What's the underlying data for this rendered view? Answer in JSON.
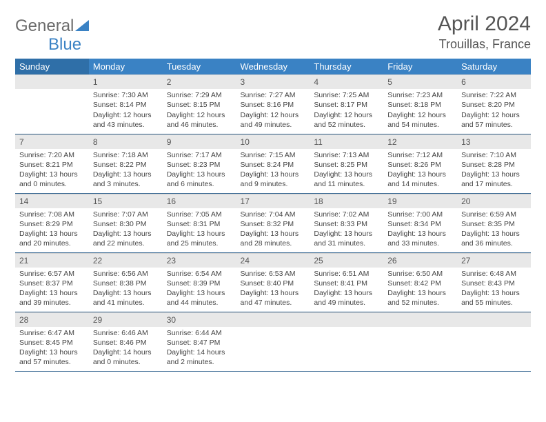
{
  "logo": {
    "part1": "General",
    "part2": "Blue"
  },
  "title": "April 2024",
  "location": "Trouillas, France",
  "header_bg": "#3a82c4",
  "header_bg_first": "#2f6fa8",
  "daynum_bg": "#e8e8e8",
  "border_color": "#3a6a94",
  "weekdays": [
    "Sunday",
    "Monday",
    "Tuesday",
    "Wednesday",
    "Thursday",
    "Friday",
    "Saturday"
  ],
  "lead_blanks": 1,
  "days": [
    {
      "n": 1,
      "sunrise": "7:30 AM",
      "sunset": "8:14 PM",
      "dl": "12 hours and 43 minutes"
    },
    {
      "n": 2,
      "sunrise": "7:29 AM",
      "sunset": "8:15 PM",
      "dl": "12 hours and 46 minutes"
    },
    {
      "n": 3,
      "sunrise": "7:27 AM",
      "sunset": "8:16 PM",
      "dl": "12 hours and 49 minutes"
    },
    {
      "n": 4,
      "sunrise": "7:25 AM",
      "sunset": "8:17 PM",
      "dl": "12 hours and 52 minutes"
    },
    {
      "n": 5,
      "sunrise": "7:23 AM",
      "sunset": "8:18 PM",
      "dl": "12 hours and 54 minutes"
    },
    {
      "n": 6,
      "sunrise": "7:22 AM",
      "sunset": "8:20 PM",
      "dl": "12 hours and 57 minutes"
    },
    {
      "n": 7,
      "sunrise": "7:20 AM",
      "sunset": "8:21 PM",
      "dl": "13 hours and 0 minutes"
    },
    {
      "n": 8,
      "sunrise": "7:18 AM",
      "sunset": "8:22 PM",
      "dl": "13 hours and 3 minutes"
    },
    {
      "n": 9,
      "sunrise": "7:17 AM",
      "sunset": "8:23 PM",
      "dl": "13 hours and 6 minutes"
    },
    {
      "n": 10,
      "sunrise": "7:15 AM",
      "sunset": "8:24 PM",
      "dl": "13 hours and 9 minutes"
    },
    {
      "n": 11,
      "sunrise": "7:13 AM",
      "sunset": "8:25 PM",
      "dl": "13 hours and 11 minutes"
    },
    {
      "n": 12,
      "sunrise": "7:12 AM",
      "sunset": "8:26 PM",
      "dl": "13 hours and 14 minutes"
    },
    {
      "n": 13,
      "sunrise": "7:10 AM",
      "sunset": "8:28 PM",
      "dl": "13 hours and 17 minutes"
    },
    {
      "n": 14,
      "sunrise": "7:08 AM",
      "sunset": "8:29 PM",
      "dl": "13 hours and 20 minutes"
    },
    {
      "n": 15,
      "sunrise": "7:07 AM",
      "sunset": "8:30 PM",
      "dl": "13 hours and 22 minutes"
    },
    {
      "n": 16,
      "sunrise": "7:05 AM",
      "sunset": "8:31 PM",
      "dl": "13 hours and 25 minutes"
    },
    {
      "n": 17,
      "sunrise": "7:04 AM",
      "sunset": "8:32 PM",
      "dl": "13 hours and 28 minutes"
    },
    {
      "n": 18,
      "sunrise": "7:02 AM",
      "sunset": "8:33 PM",
      "dl": "13 hours and 31 minutes"
    },
    {
      "n": 19,
      "sunrise": "7:00 AM",
      "sunset": "8:34 PM",
      "dl": "13 hours and 33 minutes"
    },
    {
      "n": 20,
      "sunrise": "6:59 AM",
      "sunset": "8:35 PM",
      "dl": "13 hours and 36 minutes"
    },
    {
      "n": 21,
      "sunrise": "6:57 AM",
      "sunset": "8:37 PM",
      "dl": "13 hours and 39 minutes"
    },
    {
      "n": 22,
      "sunrise": "6:56 AM",
      "sunset": "8:38 PM",
      "dl": "13 hours and 41 minutes"
    },
    {
      "n": 23,
      "sunrise": "6:54 AM",
      "sunset": "8:39 PM",
      "dl": "13 hours and 44 minutes"
    },
    {
      "n": 24,
      "sunrise": "6:53 AM",
      "sunset": "8:40 PM",
      "dl": "13 hours and 47 minutes"
    },
    {
      "n": 25,
      "sunrise": "6:51 AM",
      "sunset": "8:41 PM",
      "dl": "13 hours and 49 minutes"
    },
    {
      "n": 26,
      "sunrise": "6:50 AM",
      "sunset": "8:42 PM",
      "dl": "13 hours and 52 minutes"
    },
    {
      "n": 27,
      "sunrise": "6:48 AM",
      "sunset": "8:43 PM",
      "dl": "13 hours and 55 minutes"
    },
    {
      "n": 28,
      "sunrise": "6:47 AM",
      "sunset": "8:45 PM",
      "dl": "13 hours and 57 minutes"
    },
    {
      "n": 29,
      "sunrise": "6:46 AM",
      "sunset": "8:46 PM",
      "dl": "14 hours and 0 minutes"
    },
    {
      "n": 30,
      "sunrise": "6:44 AM",
      "sunset": "8:47 PM",
      "dl": "14 hours and 2 minutes"
    }
  ]
}
